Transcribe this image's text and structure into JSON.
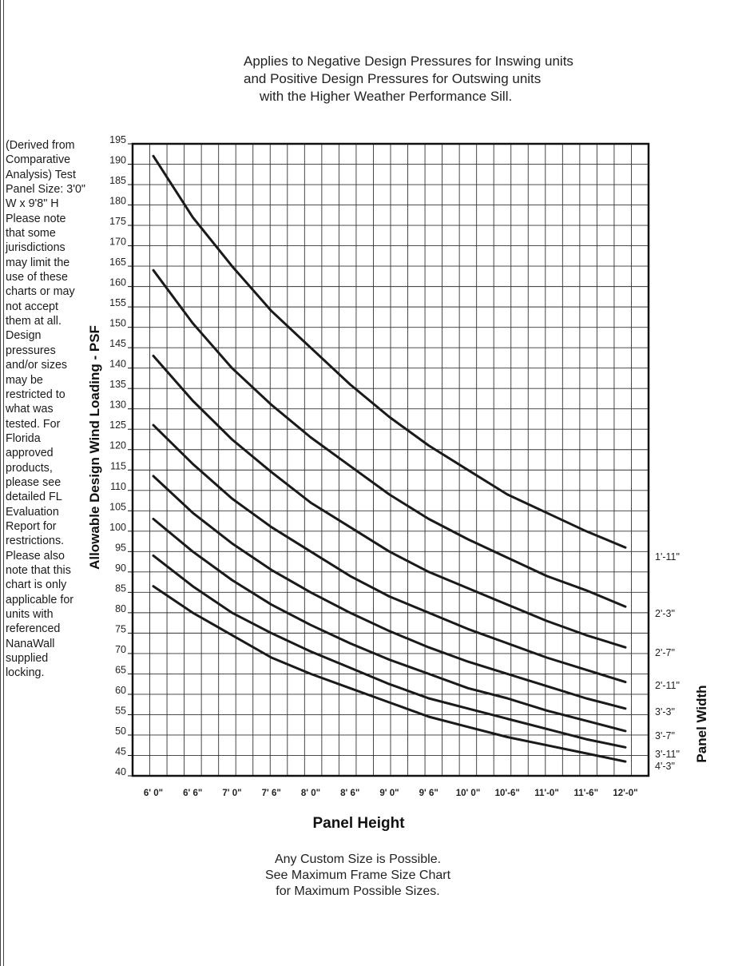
{
  "header_note": {
    "line1": "Applies to Negative Design Pressures for Inswing units",
    "line2": "and Positive Design Pressures for Outswing units",
    "line3": "with the Higher Weather Performance Sill."
  },
  "side_note": "(Derived from Comparative Analysis) Test Panel Size: 3'0\" W x 9'8\" H Please note that some jurisdictions may limit the use of these charts or may not accept them at all. Design pressures and/or sizes may be restricted to what was tested. For Florida approved products, please see detailed FL Evaluation Report for restrictions. Please also note that this chart is only applicable for units with referenced NanaWall supplied locking.",
  "footer_note": {
    "line1": "Any Custom Size is Possible.",
    "line2": "See Maximum Frame Size Chart",
    "line3": "for Maximum Possible Sizes."
  },
  "chart_data": {
    "type": "line",
    "title": "",
    "xlabel": "Panel Height",
    "ylabel": "Allowable Design Wind  Loading - PSF",
    "legend_title": "Panel Width",
    "legend_placement": "right of plot, labels at line ends",
    "grid": true,
    "ylim": [
      40,
      195
    ],
    "yticks": [
      40,
      45,
      50,
      55,
      60,
      65,
      70,
      75,
      80,
      85,
      90,
      95,
      100,
      105,
      110,
      115,
      120,
      125,
      130,
      135,
      140,
      145,
      150,
      155,
      160,
      165,
      170,
      175,
      180,
      185,
      190,
      195
    ],
    "categories": [
      "6' 0\"",
      "6' 6\"",
      "7' 0\"",
      "7' 6\"",
      "8' 0\"",
      "8' 6\"",
      "9' 0\"",
      "9' 6\"",
      "10' 0\"",
      "10'-6\"",
      "11'-0\"",
      "11'-6\"",
      "12'-0\""
    ],
    "series": [
      {
        "name": "1'-11\"",
        "values": [
          192,
          177,
          165,
          154,
          145,
          136,
          128,
          121,
          115,
          109,
          104.5,
          100,
          96
        ]
      },
      {
        "name": "2'-3\"",
        "values": [
          164,
          151,
          140,
          131,
          123,
          116,
          109,
          103,
          98,
          93.5,
          89,
          85.5,
          81.5
        ]
      },
      {
        "name": "2'-7\"",
        "values": [
          143,
          132,
          122.5,
          114.5,
          107,
          101,
          95,
          90,
          86,
          82,
          78,
          74.5,
          71.5
        ]
      },
      {
        "name": "2'-11\"",
        "values": [
          126,
          116.5,
          108,
          101,
          95,
          89,
          84,
          80,
          76,
          72.5,
          69,
          66,
          63
        ]
      },
      {
        "name": "3'-3\"",
        "values": [
          113.5,
          104.5,
          97,
          90.5,
          85,
          80,
          75.5,
          71.5,
          68,
          65,
          62,
          59,
          56.5
        ]
      },
      {
        "name": "3'-7\"",
        "values": [
          103,
          95,
          88,
          82,
          77,
          72.5,
          68.5,
          65,
          61.5,
          59,
          56,
          53.5,
          51
        ]
      },
      {
        "name": "3'-11\"",
        "values": [
          94,
          86.5,
          80,
          75,
          70.5,
          66.5,
          62.5,
          59,
          56.5,
          54,
          51.5,
          49,
          47
        ]
      },
      {
        "name": "4'-3\"",
        "values": [
          86.5,
          80,
          74.5,
          69,
          65,
          61.5,
          58,
          54.5,
          52,
          49.5,
          47.5,
          45.5,
          43.5
        ]
      }
    ]
  }
}
